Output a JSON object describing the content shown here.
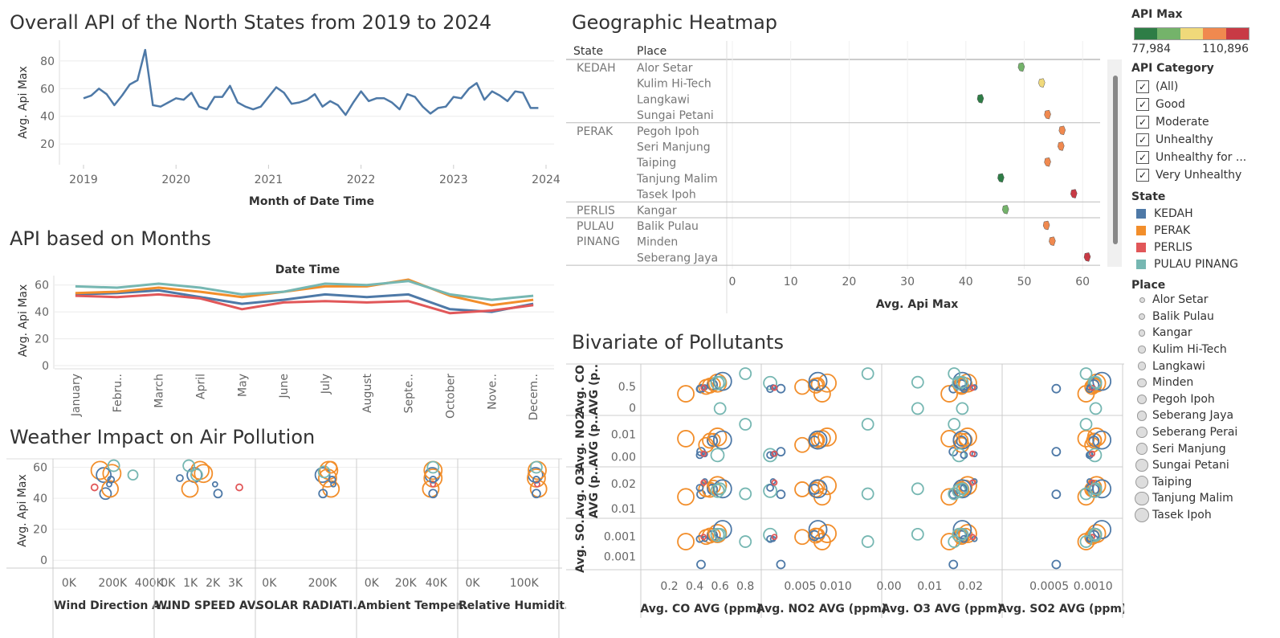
{
  "titles": {
    "overall": "Overall API of the North States from 2019 to 2024",
    "months": "API based on Months",
    "weather": "Weather Impact on Air Pollution",
    "heatmap": "Geographic Heatmap",
    "bivariate": "Bivariate of Pollutants"
  },
  "legend": {
    "api_max_title": "API Max",
    "api_min": "77,984",
    "api_max": "110,896",
    "gradient_colors": [
      "#2e7d46",
      "#74b36a",
      "#f0d97a",
      "#f0894f",
      "#c83a45"
    ],
    "category_title": "API Category",
    "categories": [
      "(All)",
      "Good",
      "Moderate",
      "Unhealthy",
      "Unhealthy for ...",
      "Very Unhealthy"
    ],
    "check_glyph": "✓",
    "state_title": "State",
    "states": [
      {
        "name": "KEDAH",
        "color": "#4e79a7"
      },
      {
        "name": "PERAK",
        "color": "#f28e2b"
      },
      {
        "name": "PERLIS",
        "color": "#e15759"
      },
      {
        "name": "PULAU PINANG",
        "color": "#76b7b2"
      }
    ],
    "place_title": "Place",
    "places": [
      "Alor Setar",
      "Balik Pulau",
      "Kangar",
      "Kulim Hi-Tech",
      "Langkawi",
      "Minden",
      "Pegoh Ipoh",
      "Seberang Jaya",
      "Seberang Perai",
      "Seri Manjung",
      "Sungai Petani",
      "Taiping",
      "Tanjung Malim",
      "Tasek Ipoh"
    ]
  },
  "chart_data": [
    {
      "id": "overall",
      "type": "line",
      "xlabel": "Month of Date Time",
      "ylabel": "Avg. Api Max",
      "x_ticks": [
        "2019",
        "2020",
        "2021",
        "2022",
        "2023",
        "2024"
      ],
      "y_ticks": [
        20,
        40,
        60,
        80
      ],
      "ylim": [
        5,
        95
      ],
      "color": "#4e79a7",
      "values": [
        53,
        55,
        60,
        56,
        48,
        55,
        63,
        66,
        88,
        48,
        47,
        50,
        53,
        52,
        57,
        47,
        45,
        54,
        54,
        62,
        50,
        47,
        45,
        47,
        54,
        61,
        57,
        49,
        50,
        52,
        56,
        47,
        51,
        48,
        41,
        50,
        58,
        51,
        53,
        53,
        50,
        45,
        56,
        54,
        47,
        42,
        46,
        47,
        54,
        53,
        60,
        64,
        52,
        58,
        55,
        51,
        58,
        57,
        46,
        46
      ],
      "grid": true
    },
    {
      "id": "months",
      "type": "line",
      "xlabel": "Date Time",
      "ylabel": "Avg. Api Max",
      "categories": [
        "January",
        "Febru..",
        "March",
        "April",
        "May",
        "June",
        "July",
        "August",
        "Septe..",
        "October",
        "Nove..",
        "Decem.."
      ],
      "y_ticks": [
        0,
        20,
        40,
        60
      ],
      "ylim": [
        0,
        67
      ],
      "series": [
        {
          "name": "KEDAH",
          "color": "#4e79a7",
          "values": [
            53,
            54,
            56,
            51,
            46,
            49,
            53,
            51,
            53,
            42,
            40,
            46
          ]
        },
        {
          "name": "PERAK",
          "color": "#f28e2b",
          "values": [
            54,
            55,
            58,
            55,
            51,
            55,
            59,
            59,
            64,
            52,
            45,
            49
          ]
        },
        {
          "name": "PERLIS",
          "color": "#e15759",
          "values": [
            52,
            51,
            53,
            50,
            42,
            47,
            48,
            47,
            48,
            39,
            41,
            45
          ]
        },
        {
          "name": "PULAU PINANG",
          "color": "#76b7b2",
          "values": [
            59,
            58,
            61,
            58,
            53,
            55,
            61,
            60,
            63,
            53,
            49,
            52
          ]
        }
      ]
    },
    {
      "id": "heatmap",
      "type": "scatter",
      "xlabel": "Avg. Api Max",
      "x_ticks": [
        0,
        10,
        20,
        30,
        40,
        50,
        60
      ],
      "xlim": [
        0,
        63
      ],
      "header_state": "State",
      "header_place": "Place",
      "groups": [
        {
          "state": [
            "KEDAH"
          ],
          "rows": [
            {
              "place": "Alor Setar",
              "value": 49.5,
              "color": "#74b36a"
            },
            {
              "place": "Kulim Hi-Tech",
              "value": 53,
              "color": "#f0d97a"
            },
            {
              "place": "Langkawi",
              "value": 42.5,
              "color": "#2e7d46"
            },
            {
              "place": "Sungai Petani",
              "value": 54,
              "color": "#f0894f"
            }
          ]
        },
        {
          "state": [
            "PERAK"
          ],
          "rows": [
            {
              "place": "Pegoh Ipoh",
              "value": 56.5,
              "color": "#f0894f"
            },
            {
              "place": "Seri Manjung",
              "value": 56.3,
              "color": "#f0894f"
            },
            {
              "place": "Taiping",
              "value": 54,
              "color": "#f0894f"
            },
            {
              "place": "Tanjung Malim",
              "value": 46,
              "color": "#2e7d46"
            },
            {
              "place": "Tasek Ipoh",
              "value": 58.5,
              "color": "#c83a45"
            }
          ]
        },
        {
          "state": [
            "PERLIS"
          ],
          "rows": [
            {
              "place": "Kangar",
              "value": 46.8,
              "color": "#74b36a"
            }
          ]
        },
        {
          "state": [
            "PULAU",
            "PINANG"
          ],
          "rows": [
            {
              "place": "Balik Pulau",
              "value": 53.8,
              "color": "#f0894f"
            },
            {
              "place": "Minden",
              "value": 54.8,
              "color": "#f0894f"
            },
            {
              "place": "Seberang Jaya",
              "value": 60.8,
              "color": "#c83a45"
            }
          ]
        }
      ]
    },
    {
      "id": "weather",
      "type": "scatter",
      "ylabel": "Avg. Api Max",
      "y_ticks": [
        0,
        20,
        40,
        60
      ],
      "ylim": [
        -3,
        67
      ],
      "panels": [
        {
          "xlabel": "Wind Direction A..",
          "x_ticks": [
            [
              "0K",
              0
            ],
            [
              "200K",
              200000
            ],
            [
              "400K",
              400000
            ]
          ],
          "xlim": [
            -30000,
            480000
          ],
          "points": [
            [
              210000,
              58,
              11,
              "#f28e2b"
            ],
            [
              230000,
              55,
              9,
              "#4e79a7"
            ],
            [
              240000,
              43,
              7,
              "#4e79a7"
            ],
            [
              265000,
              46,
              10,
              "#f28e2b"
            ],
            [
              275000,
              56,
              11,
              "#f28e2b"
            ],
            [
              285000,
              61,
              7,
              "#76b7b2"
            ],
            [
              180000,
              47,
              4,
              "#e15759"
            ],
            [
              270000,
              52,
              4,
              "#4e79a7"
            ],
            [
              260000,
              49,
              3,
              "#4e79a7"
            ],
            [
              390000,
              55,
              6,
              "#76b7b2"
            ]
          ]
        },
        {
          "xlabel": "WIND SPEED AV..",
          "x_ticks": [
            [
              "0K",
              0
            ],
            [
              "1K",
              1000
            ],
            [
              "2K",
              2000
            ],
            [
              "3K",
              3000
            ]
          ],
          "xlim": [
            -150,
            4000
          ],
          "points": [
            [
              1500,
              55,
              9,
              "#4e79a7"
            ],
            [
              1300,
              46,
              10,
              "#f28e2b"
            ],
            [
              1750,
              58,
              11,
              "#f28e2b"
            ],
            [
              1900,
              56,
              11,
              "#f28e2b"
            ],
            [
              1600,
              55,
              7,
              "#76b7b2"
            ],
            [
              1250,
              61,
              7,
              "#76b7b2"
            ],
            [
              2550,
              43,
              5,
              "#4e79a7"
            ],
            [
              2420,
              49,
              3,
              "#4e79a7"
            ],
            [
              3500,
              47,
              4,
              "#e15759"
            ],
            [
              850,
              53,
              4,
              "#4e79a7"
            ]
          ]
        },
        {
          "xlabel": "SOLAR RADIATI..",
          "x_ticks": [
            [
              "0K",
              0
            ],
            [
              "200K",
              200000
            ]
          ],
          "xlim": [
            -15000,
            390000
          ],
          "points": [
            [
              263000,
              55,
              9,
              "#4e79a7"
            ],
            [
              290000,
              58,
              11,
              "#f28e2b"
            ],
            [
              300000,
              46,
              10,
              "#f28e2b"
            ],
            [
              285000,
              53,
              11,
              "#f28e2b"
            ],
            [
              270000,
              57,
              7,
              "#76b7b2"
            ],
            [
              265000,
              43,
              5,
              "#4e79a7"
            ],
            [
              310000,
              49,
              3,
              "#4e79a7"
            ],
            [
              300000,
              60,
              7,
              "#f28e2b"
            ],
            [
              305000,
              52,
              4,
              "#4e79a7"
            ]
          ]
        },
        {
          "xlabel": "Ambient Temper..",
          "x_ticks": [
            [
              "0K",
              0
            ],
            [
              "20K",
              20000
            ],
            [
              "40K",
              40000
            ]
          ],
          "xlim": [
            -3000,
            58000
          ],
          "points": [
            [
              44500,
              55,
              9,
              "#4e79a7"
            ],
            [
              45000,
              58,
              11,
              "#f28e2b"
            ],
            [
              43500,
              46,
              10,
              "#f28e2b"
            ],
            [
              45000,
              53,
              11,
              "#f28e2b"
            ],
            [
              45000,
              60,
              7,
              "#76b7b2"
            ],
            [
              45000,
              43,
              5,
              "#4e79a7"
            ],
            [
              45000,
              49,
              3,
              "#e15759"
            ],
            [
              45000,
              52,
              4,
              "#4e79a7"
            ]
          ]
        },
        {
          "xlabel": "Relative Humidit..",
          "x_ticks": [
            [
              "0K",
              0
            ],
            [
              "100K",
              100000
            ]
          ],
          "xlim": [
            -10000,
            200000
          ],
          "points": [
            [
              158000,
              55,
              9,
              "#4e79a7"
            ],
            [
              162000,
              58,
              11,
              "#f28e2b"
            ],
            [
              165000,
              46,
              10,
              "#f28e2b"
            ],
            [
              160000,
              53,
              11,
              "#f28e2b"
            ],
            [
              160000,
              60,
              7,
              "#76b7b2"
            ],
            [
              160000,
              43,
              5,
              "#4e79a7"
            ],
            [
              162000,
              49,
              3,
              "#e15759"
            ],
            [
              160000,
              52,
              4,
              "#4e79a7"
            ]
          ]
        }
      ]
    },
    {
      "id": "bivariate",
      "type": "scatter",
      "row_labels": [
        [
          "Avg. CO",
          "AVG (p.."
        ],
        [
          "Avg. NO2",
          "AVG (p.."
        ],
        [
          "Avg. O3",
          "AVG (p.."
        ],
        [
          "Avg. SO..",
          ""
        ]
      ],
      "col_labels": [
        "Avg. CO AVG (ppm)",
        "Avg. NO2 AVG (ppm)",
        "Avg. O3 AVG (ppm)",
        "Avg. SO2 AVG (ppm)"
      ],
      "col_ticks": [
        [
          [
            "0.2",
            0.2
          ],
          [
            "0.4",
            0.4
          ],
          [
            "0.6",
            0.6
          ],
          [
            "0.8",
            0.8
          ]
        ],
        [
          [
            "0.005",
            0.005
          ],
          [
            "0.010",
            0.01
          ]
        ],
        [
          [
            "0.00",
            0.0
          ],
          [
            "0.01",
            0.01
          ],
          [
            "0.02",
            0.02
          ]
        ],
        [
          [
            "0.0005",
            0.0005
          ],
          [
            "0.0010",
            0.001
          ]
        ]
      ],
      "col_lim": [
        [
          0.0,
          0.9
        ],
        [
          0.0,
          0.016
        ],
        [
          -0.001,
          0.027
        ],
        [
          0.0,
          0.0013
        ]
      ],
      "row_ticks": [
        [
          [
            "0.5",
            0.5
          ],
          [
            "0",
            0
          ]
        ],
        [
          [
            "0.01",
            0.01
          ],
          [
            "0.00",
            0.0
          ]
        ],
        [
          [
            "0.02",
            0.02
          ],
          [
            "0.01",
            0.01
          ]
        ],
        [
          [
            "0.001",
            0.001
          ],
          [
            "0.001",
            0.0007
          ]
        ]
      ],
      "row_lim": [
        [
          -0.1,
          0.95
        ],
        [
          -0.003,
          0.017
        ],
        [
          0.0075,
          0.0255
        ],
        [
          0.00055,
          0.00122
        ]
      ],
      "points": [
        [
          0.33,
          0.0081,
          0.0148,
          0.00092,
          0.001,
          "#f28e2b",
          10
        ],
        [
          0.45,
          0.0023,
          0.0158,
          0.00058,
          0.001,
          "#4e79a7",
          5
        ],
        [
          0.49,
          0.0053,
          0.0178,
          0.00099,
          0.0011,
          "#f28e2b",
          9
        ],
        [
          0.52,
          0.0072,
          0.0176,
          0.00101,
          0.0011,
          "#f28e2b",
          9
        ],
        [
          0.55,
          0.0075,
          0.0188,
          0.00102,
          0.0011,
          "#f28e2b",
          8
        ],
        [
          0.54,
          0.007,
          0.0178,
          0.00101,
          0.001,
          "#4e79a7",
          6
        ],
        [
          0.58,
          0.0088,
          0.0193,
          0.00104,
          0.001,
          "#f28e2b",
          11
        ],
        [
          0.62,
          0.0075,
          0.018,
          0.0011,
          0.0011,
          "#4e79a7",
          11
        ],
        [
          0.58,
          0.0008,
          0.0172,
          0.00102,
          0.001,
          "#76b7b2",
          8
        ],
        [
          0.48,
          0.0012,
          0.021,
          0.00096,
          0.0009,
          "#4e79a7",
          3
        ],
        [
          0.44,
          0.0008,
          0.0184,
          0.00096,
          0.0009,
          "#4e79a7",
          4
        ],
        [
          0.47,
          0.0014,
          0.0205,
          0.00099,
          0.0009,
          "#e15759",
          3
        ],
        [
          0.8,
          0.0145,
          0.016,
          0.00092,
          0.0008,
          "#76b7b2",
          7
        ],
        [
          0.6,
          0.0215,
          0.018,
          0.00103,
          0.001,
          "#76b7b2",
          7
        ]
      ]
    }
  ]
}
